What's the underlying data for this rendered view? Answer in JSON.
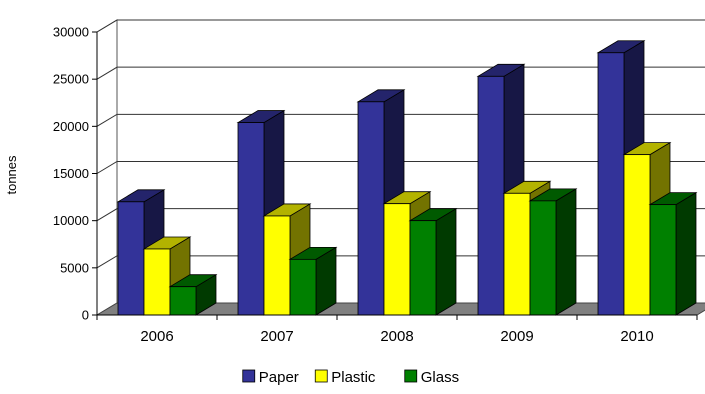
{
  "chart_data": {
    "type": "bar",
    "title": "",
    "xlabel": "",
    "ylabel": "tonnes",
    "categories": [
      "2006",
      "2007",
      "2008",
      "2009",
      "2010"
    ],
    "series": [
      {
        "name": "Paper",
        "values": [
          12000,
          20400,
          22600,
          25300,
          27800
        ],
        "color": "#333399"
      },
      {
        "name": "Plastic",
        "values": [
          7000,
          10500,
          11800,
          12900,
          17000
        ],
        "color": "#ffff00"
      },
      {
        "name": "Glass",
        "values": [
          3000,
          5900,
          10000,
          12100,
          11700
        ],
        "color": "#008000"
      }
    ],
    "ylim": [
      0,
      30000
    ],
    "yticks": [
      "0",
      "5000",
      "10000",
      "15000",
      "20000",
      "25000",
      "30000"
    ],
    "grid": true,
    "legend": "bottom",
    "style": "3d-clustered"
  }
}
